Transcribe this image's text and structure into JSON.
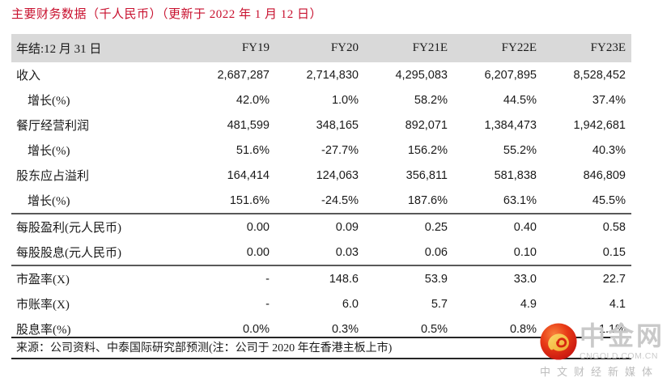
{
  "title": "主要财务数据（千人民币）（更新于 2022 年 1 月 12 日）",
  "table": {
    "header": [
      "年结:12 月 31 日",
      "FY19",
      "FY20",
      "FY21E",
      "FY22E",
      "FY23E"
    ],
    "rows": [
      {
        "label": "收入",
        "indent": false,
        "rule_above": false,
        "values": [
          "2,687,287",
          "2,714,830",
          "4,295,083",
          "6,207,895",
          "8,528,452"
        ]
      },
      {
        "label": "增长(%)",
        "indent": true,
        "rule_above": false,
        "values": [
          "42.0%",
          "1.0%",
          "58.2%",
          "44.5%",
          "37.4%"
        ]
      },
      {
        "label": "餐厅经营利润",
        "indent": false,
        "rule_above": false,
        "values": [
          "481,599",
          "348,165",
          "892,071",
          "1,384,473",
          "1,942,681"
        ]
      },
      {
        "label": "增长(%)",
        "indent": true,
        "rule_above": false,
        "values": [
          "51.6%",
          "-27.7%",
          "156.2%",
          "55.2%",
          "40.3%"
        ]
      },
      {
        "label": "股东应占溢利",
        "indent": false,
        "rule_above": false,
        "values": [
          "164,414",
          "124,063",
          "356,811",
          "581,838",
          "846,809"
        ]
      },
      {
        "label": "增长(%)",
        "indent": true,
        "rule_above": false,
        "values": [
          "151.6%",
          "-24.5%",
          "187.6%",
          "63.1%",
          "45.5%"
        ]
      },
      {
        "label": "每股盈利(元人民币)",
        "indent": false,
        "rule_above": true,
        "values": [
          "0.00",
          "0.09",
          "0.25",
          "0.40",
          "0.58"
        ]
      },
      {
        "label": "每股股息(元人民币)",
        "indent": false,
        "rule_above": false,
        "values": [
          "0.00",
          "0.03",
          "0.06",
          "0.10",
          "0.15"
        ]
      },
      {
        "label": "市盈率(X)",
        "indent": false,
        "rule_above": true,
        "values": [
          "-",
          "148.6",
          "53.9",
          "33.0",
          "22.7"
        ]
      },
      {
        "label": "市账率(X)",
        "indent": false,
        "rule_above": false,
        "values": [
          "-",
          "6.0",
          "5.7",
          "4.9",
          "4.1"
        ]
      },
      {
        "label": "股息率(%)",
        "indent": false,
        "rule_above": false,
        "values": [
          "0.0%",
          "0.3%",
          "0.5%",
          "0.8%",
          "1.1%"
        ]
      }
    ]
  },
  "source_note": "来源：公司资料、中泰国际研究部预测(注：公司于 2020 年在香港主板上市)",
  "watermark": {
    "name": "中金网",
    "domain": "CNGOLD.COM.CN",
    "tagline": "中文财经新媒体"
  },
  "colors": {
    "title_red": "#C8102E",
    "header_bg": "#D9D9D9",
    "rule_gray": "#595959",
    "rule_dark": "#262626",
    "watermark_gray": "#C9C9C9",
    "logo_red": "#D7260F",
    "logo_gold": "#F5C242"
  }
}
